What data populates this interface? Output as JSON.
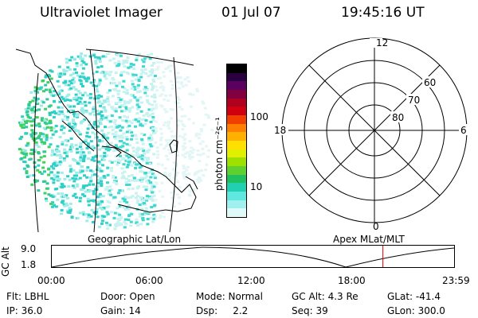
{
  "header": {
    "instrument": "Ultraviolet Imager",
    "date": "01 Jul 07",
    "time": "19:45:16 UT"
  },
  "colorbar": {
    "label": "photon cm⁻²s⁻¹",
    "ticks": [
      "100",
      "10"
    ],
    "colors": [
      "#000000",
      "#2a0040",
      "#5a0060",
      "#800040",
      "#b00020",
      "#d00010",
      "#f04000",
      "#ff8000",
      "#ffb000",
      "#ffe000",
      "#e0f000",
      "#a0e000",
      "#60d030",
      "#20c060",
      "#20d0b0",
      "#60e8e0",
      "#a0f0f0",
      "#e0fafa"
    ]
  },
  "map": {
    "label": "Geographic Lat/Lon"
  },
  "polar": {
    "label": "Apex  MLat/MLT",
    "mlt_labels": {
      "top": "12",
      "left": "18",
      "right": "6",
      "bottom": "0"
    },
    "lat_labels": [
      "60",
      "70",
      "80"
    ]
  },
  "timeline": {
    "ylabel": "GC Alt",
    "ymax": "9.0",
    "ymin": "1.8",
    "xticks": [
      "00:00",
      "06:00",
      "12:00",
      "18:00",
      "23:59"
    ],
    "current_fraction": 0.823
  },
  "status": {
    "row1": [
      "Flt: LBHL",
      "Door: Open",
      "Mode: Normal",
      "GC Alt: 4.3 Re",
      "GLat: -41.4"
    ],
    "row2": [
      "IP: 36.0",
      "Gain: 14",
      "Dsp:     2.2",
      "Seq: 39",
      "GLon: 300.0"
    ]
  }
}
